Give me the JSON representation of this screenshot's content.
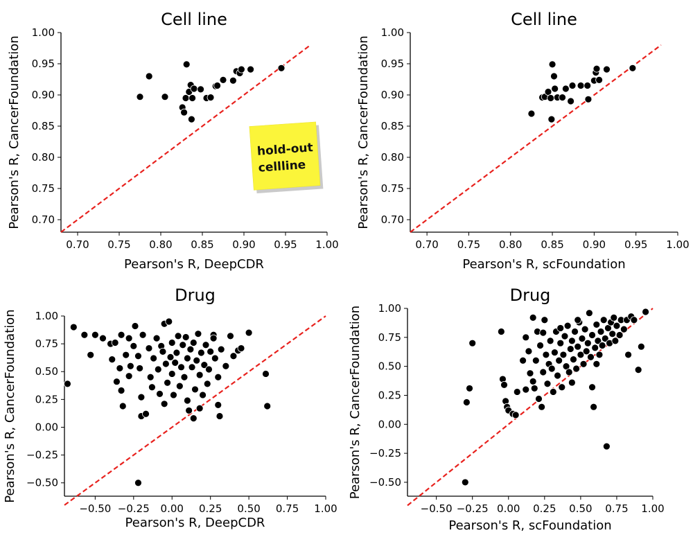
{
  "chart_data": [
    {
      "type": "scatter",
      "title": "Cell line",
      "xlabel": "Pearson's R, DeepCDR",
      "ylabel": "Pearson's R, CancerFoundation",
      "xlim": [
        0.68,
        1.0
      ],
      "ylim": [
        0.68,
        1.0
      ],
      "xticks": [
        "0.70",
        "0.75",
        "0.80",
        "0.85",
        "0.90",
        "0.95",
        "1.00"
      ],
      "xtick_values": [
        0.7,
        0.75,
        0.8,
        0.85,
        0.9,
        0.95,
        1.0
      ],
      "yticks": [
        "0.70",
        "0.75",
        "0.80",
        "0.85",
        "0.90",
        "0.95",
        "1.00"
      ],
      "ytick_values": [
        0.7,
        0.75,
        0.8,
        0.85,
        0.9,
        0.95,
        1.0
      ],
      "diagonal": [
        [
          0.68,
          0.68
        ],
        [
          0.98,
          0.98
        ]
      ],
      "annotation": [
        "hold-out",
        "cellline"
      ],
      "points": [
        [
          0.775,
          0.897
        ],
        [
          0.786,
          0.93
        ],
        [
          0.805,
          0.897
        ],
        [
          0.826,
          0.88
        ],
        [
          0.828,
          0.872
        ],
        [
          0.83,
          0.895
        ],
        [
          0.831,
          0.949
        ],
        [
          0.834,
          0.905
        ],
        [
          0.836,
          0.916
        ],
        [
          0.838,
          0.895
        ],
        [
          0.837,
          0.861
        ],
        [
          0.84,
          0.91
        ],
        [
          0.848,
          0.909
        ],
        [
          0.855,
          0.895
        ],
        [
          0.86,
          0.896
        ],
        [
          0.866,
          0.914
        ],
        [
          0.868,
          0.915
        ],
        [
          0.875,
          0.924
        ],
        [
          0.887,
          0.923
        ],
        [
          0.891,
          0.938
        ],
        [
          0.895,
          0.935
        ],
        [
          0.897,
          0.941
        ],
        [
          0.908,
          0.941
        ],
        [
          0.945,
          0.943
        ]
      ]
    },
    {
      "type": "scatter",
      "title": "Cell line",
      "xlabel": "Pearson's R, scFoundation",
      "ylabel": "Pearson's R, CancerFoundation",
      "xlim": [
        0.68,
        1.0
      ],
      "ylim": [
        0.68,
        1.0
      ],
      "xticks": [
        "0.70",
        "0.75",
        "0.80",
        "0.85",
        "0.90",
        "0.95",
        "1.00"
      ],
      "xtick_values": [
        0.7,
        0.75,
        0.8,
        0.85,
        0.9,
        0.95,
        1.0
      ],
      "yticks": [
        "0.70",
        "0.75",
        "0.80",
        "0.85",
        "0.90",
        "0.95",
        "1.00"
      ],
      "ytick_values": [
        0.7,
        0.75,
        0.8,
        0.85,
        0.9,
        0.95,
        1.0
      ],
      "diagonal": [
        [
          0.68,
          0.68
        ],
        [
          0.98,
          0.98
        ]
      ],
      "points": [
        [
          0.825,
          0.87
        ],
        [
          0.838,
          0.896
        ],
        [
          0.841,
          0.897
        ],
        [
          0.845,
          0.905
        ],
        [
          0.848,
          0.895
        ],
        [
          0.849,
          0.861
        ],
        [
          0.85,
          0.949
        ],
        [
          0.852,
          0.93
        ],
        [
          0.853,
          0.91
        ],
        [
          0.856,
          0.896
        ],
        [
          0.862,
          0.896
        ],
        [
          0.866,
          0.91
        ],
        [
          0.872,
          0.89
        ],
        [
          0.874,
          0.915
        ],
        [
          0.884,
          0.915
        ],
        [
          0.892,
          0.915
        ],
        [
          0.893,
          0.893
        ],
        [
          0.9,
          0.923
        ],
        [
          0.902,
          0.936
        ],
        [
          0.903,
          0.942
        ],
        [
          0.906,
          0.924
        ],
        [
          0.915,
          0.941
        ],
        [
          0.946,
          0.943
        ]
      ]
    },
    {
      "type": "scatter",
      "title": "Drug",
      "xlabel": "Pearson's R, DeepCDR",
      "ylabel": "Pearson's R, CancerFoundation",
      "xlim": [
        -0.7,
        1.0
      ],
      "ylim": [
        -0.62,
        1.0
      ],
      "xticks": [
        "−0.50",
        "−0.25",
        "0.00",
        "0.25",
        "0.50",
        "0.75",
        "1.00"
      ],
      "xtick_values": [
        -0.5,
        -0.25,
        0.0,
        0.25,
        0.5,
        0.75,
        1.0
      ],
      "yticks": [
        "−0.50",
        "−0.25",
        "0.00",
        "0.25",
        "0.50",
        "0.75",
        "1.00"
      ],
      "ytick_values": [
        -0.5,
        -0.25,
        0.0,
        0.25,
        0.5,
        0.75,
        1.0
      ],
      "diagonal": [
        [
          -0.7,
          -0.7
        ],
        [
          1.0,
          1.0
        ]
      ],
      "points": [
        [
          -0.68,
          0.39
        ],
        [
          -0.64,
          0.9
        ],
        [
          -0.57,
          0.83
        ],
        [
          -0.53,
          0.65
        ],
        [
          -0.5,
          0.83
        ],
        [
          -0.45,
          0.8
        ],
        [
          -0.4,
          0.75
        ],
        [
          -0.39,
          0.61
        ],
        [
          -0.37,
          0.76
        ],
        [
          -0.36,
          0.41
        ],
        [
          -0.34,
          0.53
        ],
        [
          -0.33,
          0.33
        ],
        [
          -0.32,
          0.19
        ],
        [
          -0.3,
          0.65
        ],
        [
          -0.28,
          0.8
        ],
        [
          -0.28,
          0.46
        ],
        [
          -0.27,
          0.55
        ],
        [
          -0.25,
          0.73
        ],
        [
          -0.24,
          0.91
        ],
        [
          -0.22,
          0.64
        ],
        [
          -0.21,
          0.53
        ],
        [
          -0.2,
          0.27
        ],
        [
          -0.2,
          0.1
        ],
        [
          -0.19,
          0.83
        ],
        [
          -0.17,
          0.12
        ],
        [
          -0.15,
          0.71
        ],
        [
          -0.14,
          0.45
        ],
        [
          -0.13,
          0.36
        ],
        [
          -0.12,
          0.62
        ],
        [
          -0.1,
          0.8
        ],
        [
          -0.09,
          0.52
        ],
        [
          -0.08,
          0.3
        ],
        [
          -0.07,
          0.73
        ],
        [
          -0.06,
          0.68
        ],
        [
          -0.05,
          0.93
        ],
        [
          -0.04,
          0.57
        ],
        [
          -0.03,
          0.4
        ],
        [
          -0.02,
          0.95
        ],
        [
          -0.01,
          0.63
        ],
        [
          0.0,
          0.76
        ],
        [
          0.0,
          0.48
        ],
        [
          0.01,
          0.29
        ],
        [
          0.02,
          0.58
        ],
        [
          0.03,
          0.67
        ],
        [
          0.04,
          0.82
        ],
        [
          0.05,
          0.37
        ],
        [
          0.06,
          0.54
        ],
        [
          0.07,
          0.74
        ],
        [
          0.08,
          0.45
        ],
        [
          0.09,
          0.81
        ],
        [
          0.1,
          0.24
        ],
        [
          0.1,
          0.62
        ],
        [
          0.11,
          0.15
        ],
        [
          0.12,
          0.7
        ],
        [
          0.13,
          0.54
        ],
        [
          0.14,
          0.76
        ],
        [
          0.14,
          0.08
        ],
        [
          0.15,
          0.34
        ],
        [
          0.16,
          0.6
        ],
        [
          0.17,
          0.84
        ],
        [
          0.18,
          0.47
        ],
        [
          0.19,
          0.67
        ],
        [
          0.2,
          0.29
        ],
        [
          0.21,
          0.56
        ],
        [
          0.22,
          0.74
        ],
        [
          0.23,
          0.39
        ],
        [
          0.24,
          0.52
        ],
        [
          0.25,
          0.68
        ],
        [
          0.27,
          0.83
        ],
        [
          0.28,
          0.62
        ],
        [
          0.3,
          0.45
        ],
        [
          0.3,
          0.2
        ],
        [
          0.32,
          0.7
        ],
        [
          0.31,
          0.1
        ],
        [
          0.35,
          0.55
        ],
        [
          0.38,
          0.82
        ],
        [
          0.4,
          0.64
        ],
        [
          0.43,
          0.69
        ],
        [
          0.45,
          0.71
        ],
        [
          0.5,
          0.85
        ],
        [
          0.61,
          0.48
        ],
        [
          0.62,
          0.19
        ],
        [
          -0.22,
          -0.5
        ],
        [
          -0.33,
          0.83
        ],
        [
          0.27,
          0.8
        ],
        [
          -0.05,
          0.21
        ],
        [
          0.18,
          0.17
        ]
      ]
    },
    {
      "type": "scatter",
      "title": "Drug",
      "xlabel": "Pearson's R, scFoundation",
      "ylabel": "Pearson's R, CancerFoundation",
      "xlim": [
        -0.7,
        1.0
      ],
      "ylim": [
        -0.62,
        1.0
      ],
      "xticks": [
        "−0.50",
        "−0.25",
        "0.00",
        "0.25",
        "0.50",
        "0.75",
        "1.00"
      ],
      "xtick_values": [
        -0.5,
        -0.25,
        0.0,
        0.25,
        0.5,
        0.75,
        1.0
      ],
      "yticks": [
        "−0.50",
        "−0.25",
        "0.00",
        "0.25",
        "0.50",
        "0.75",
        "1.00"
      ],
      "ytick_values": [
        -0.5,
        -0.25,
        0.0,
        0.25,
        0.5,
        0.75,
        1.0
      ],
      "diagonal": [
        [
          -0.7,
          -0.7
        ],
        [
          1.0,
          1.0
        ]
      ],
      "points": [
        [
          -0.3,
          -0.5
        ],
        [
          -0.29,
          0.19
        ],
        [
          -0.27,
          0.31
        ],
        [
          -0.25,
          0.7
        ],
        [
          -0.05,
          0.8
        ],
        [
          -0.04,
          0.39
        ],
        [
          -0.03,
          0.34
        ],
        [
          -0.02,
          0.2
        ],
        [
          -0.01,
          0.15
        ],
        [
          0.0,
          0.12
        ],
        [
          0.03,
          0.09
        ],
        [
          0.05,
          0.08
        ],
        [
          0.06,
          0.28
        ],
        [
          0.1,
          0.55
        ],
        [
          0.12,
          0.75
        ],
        [
          0.14,
          0.63
        ],
        [
          0.15,
          0.44
        ],
        [
          0.17,
          0.37
        ],
        [
          0.18,
          0.31
        ],
        [
          0.19,
          0.55
        ],
        [
          0.2,
          0.8
        ],
        [
          0.21,
          0.22
        ],
        [
          0.22,
          0.68
        ],
        [
          0.23,
          0.15
        ],
        [
          0.24,
          0.45
        ],
        [
          0.25,
          0.9
        ],
        [
          0.26,
          0.6
        ],
        [
          0.27,
          0.35
        ],
        [
          0.28,
          0.52
        ],
        [
          0.29,
          0.72
        ],
        [
          0.3,
          0.48
        ],
        [
          0.31,
          0.28
        ],
        [
          0.32,
          0.62
        ],
        [
          0.33,
          0.8
        ],
        [
          0.34,
          0.42
        ],
        [
          0.35,
          0.55
        ],
        [
          0.36,
          0.7
        ],
        [
          0.37,
          0.32
        ],
        [
          0.38,
          0.6
        ],
        [
          0.39,
          0.76
        ],
        [
          0.4,
          0.5
        ],
        [
          0.41,
          0.85
        ],
        [
          0.42,
          0.45
        ],
        [
          0.43,
          0.65
        ],
        [
          0.44,
          0.72
        ],
        [
          0.45,
          0.56
        ],
        [
          0.46,
          0.8
        ],
        [
          0.47,
          0.48
        ],
        [
          0.48,
          0.67
        ],
        [
          0.49,
          0.88
        ],
        [
          0.5,
          0.6
        ],
        [
          0.51,
          0.74
        ],
        [
          0.52,
          0.52
        ],
        [
          0.53,
          0.82
        ],
        [
          0.54,
          0.63
        ],
        [
          0.55,
          0.7
        ],
        [
          0.56,
          0.96
        ],
        [
          0.57,
          0.58
        ],
        [
          0.58,
          0.77
        ],
        [
          0.59,
          0.15
        ],
        [
          0.6,
          0.66
        ],
        [
          0.61,
          0.86
        ],
        [
          0.62,
          0.72
        ],
        [
          0.63,
          0.6
        ],
        [
          0.64,
          0.8
        ],
        [
          0.65,
          0.68
        ],
        [
          0.66,
          0.9
        ],
        [
          0.67,
          0.74
        ],
        [
          0.68,
          -0.19
        ],
        [
          0.69,
          0.83
        ],
        [
          0.7,
          0.7
        ],
        [
          0.71,
          0.88
        ],
        [
          0.72,
          0.78
        ],
        [
          0.73,
          0.92
        ],
        [
          0.74,
          0.72
        ],
        [
          0.75,
          0.85
        ],
        [
          0.77,
          0.77
        ],
        [
          0.78,
          0.9
        ],
        [
          0.8,
          0.82
        ],
        [
          0.82,
          0.9
        ],
        [
          0.83,
          0.6
        ],
        [
          0.85,
          0.93
        ],
        [
          0.87,
          0.9
        ],
        [
          0.9,
          0.47
        ],
        [
          0.92,
          0.67
        ],
        [
          0.95,
          0.97
        ],
        [
          0.17,
          0.92
        ],
        [
          0.12,
          0.3
        ],
        [
          0.48,
          0.9
        ],
        [
          0.58,
          0.32
        ],
        [
          0.24,
          0.79
        ],
        [
          0.36,
          0.83
        ],
        [
          0.44,
          0.36
        ],
        [
          0.61,
          0.52
        ]
      ]
    }
  ]
}
